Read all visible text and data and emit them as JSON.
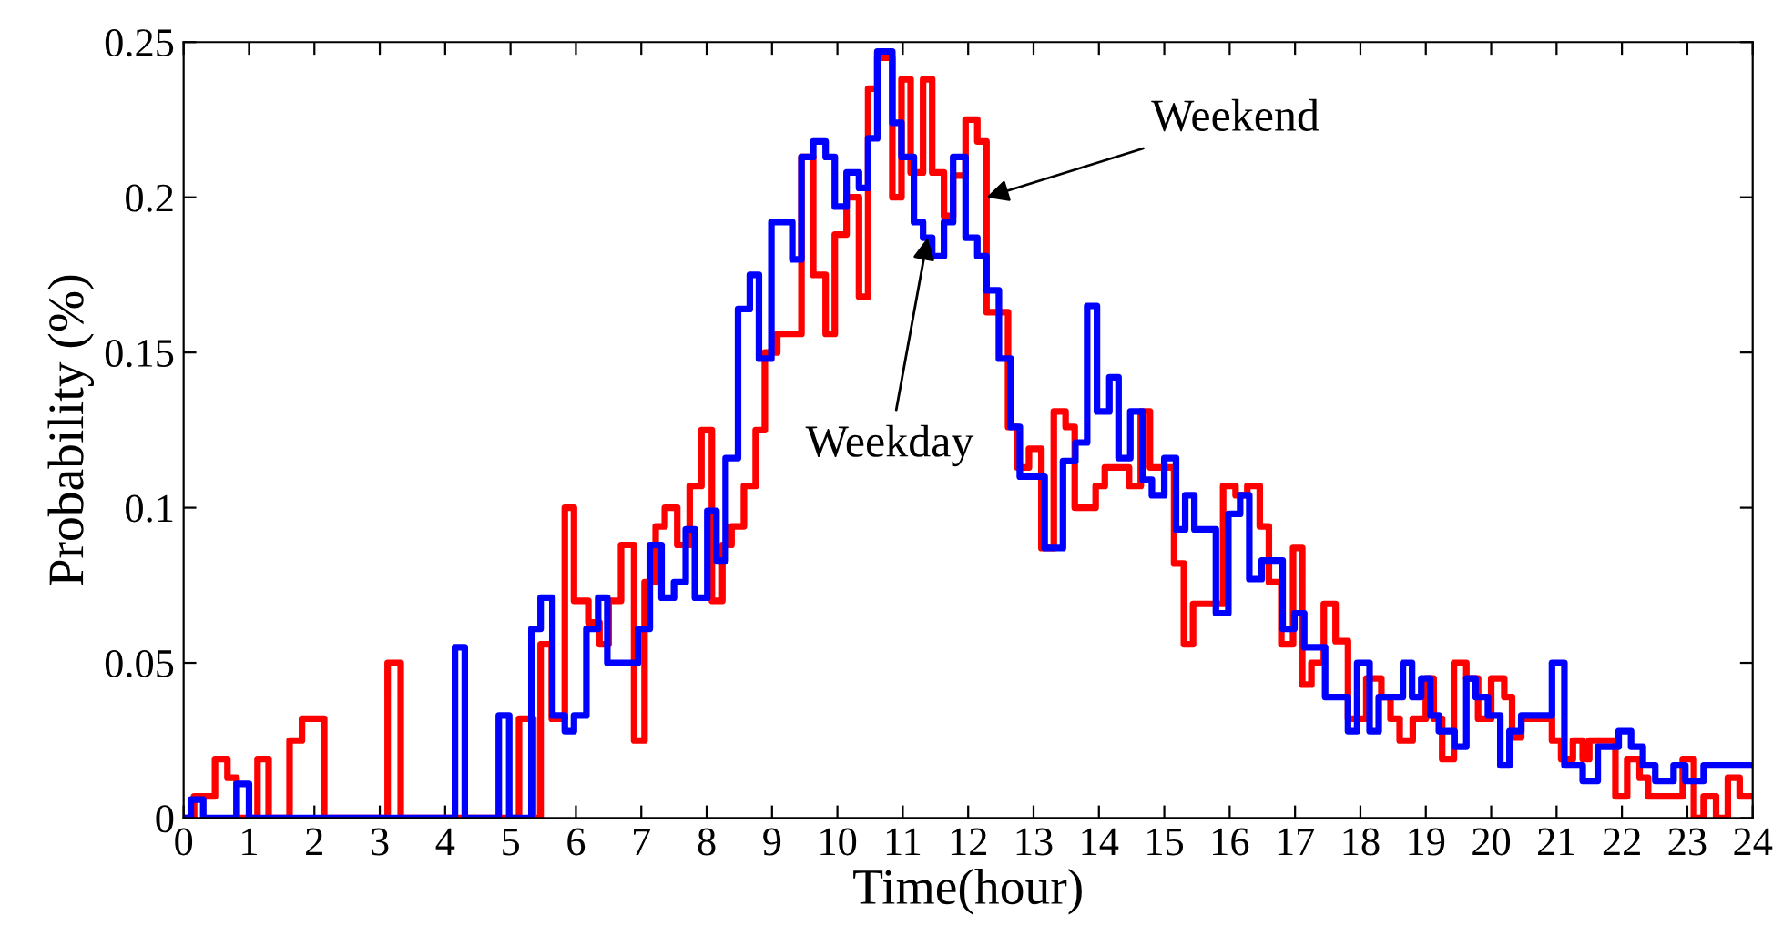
{
  "chart_data": {
    "type": "step",
    "xlabel": "Time(hour)",
    "ylabel": "Probability (%)",
    "xlim": [
      0,
      24
    ],
    "ylim": [
      0,
      0.25
    ],
    "xticks": [
      0,
      1,
      2,
      3,
      4,
      5,
      6,
      7,
      8,
      9,
      10,
      11,
      12,
      13,
      14,
      15,
      16,
      17,
      18,
      19,
      20,
      21,
      22,
      23,
      24
    ],
    "yticks": [
      0,
      0.05,
      0.1,
      0.15,
      0.2,
      0.25
    ],
    "grid": false,
    "series": [
      {
        "color": "#ff0000",
        "x": [
          0,
          0.16,
          0.48,
          0.67,
          0.81,
          1.13,
          1.3,
          1.62,
          1.81,
          2.15,
          3.12,
          3.32,
          5.13,
          5.35,
          5.46,
          5.63,
          5.83,
          5.97,
          6.19,
          6.36,
          6.5,
          6.69,
          6.89,
          7.05,
          7.22,
          7.36,
          7.55,
          7.74,
          7.92,
          8.08,
          8.24,
          8.38,
          8.57,
          8.75,
          8.89,
          9.08,
          9.45,
          9.63,
          9.82,
          9.96,
          10.14,
          10.33,
          10.47,
          10.61,
          10.84,
          10.98,
          11.12,
          11.31,
          11.45,
          11.63,
          11.77,
          11.96,
          12.14,
          12.28,
          12.61,
          12.75,
          12.93,
          13.12,
          13.31,
          13.49,
          13.63,
          13.95,
          14.09,
          14.46,
          14.64,
          14.78,
          15.15,
          15.3,
          15.44,
          15.9,
          16.09,
          16.27,
          16.46,
          16.6,
          16.79,
          16.97,
          17.11,
          17.25,
          17.44,
          17.62,
          17.81,
          18.09,
          18.32,
          18.46,
          18.6,
          18.8,
          19.0,
          19.12,
          19.25,
          19.43,
          19.62,
          19.8,
          20.0,
          20.2,
          20.32,
          20.46,
          20.93,
          21.07,
          21.25,
          21.4,
          21.5,
          21.9,
          22.08,
          22.27,
          22.4,
          22.93,
          23.1,
          23.25,
          23.44,
          23.62,
          23.8,
          24
        ],
        "values": [
          0,
          0.007,
          0.019,
          0.013,
          0,
          0.019,
          0,
          0.025,
          0.032,
          0,
          0.05,
          0,
          0.032,
          0,
          0.056,
          0.032,
          0.1,
          0.07,
          0.063,
          0.056,
          0.07,
          0.088,
          0.025,
          0.076,
          0.094,
          0.1,
          0.088,
          0.107,
          0.125,
          0.07,
          0.088,
          0.094,
          0.107,
          0.125,
          0.15,
          0.156,
          0.213,
          0.175,
          0.156,
          0.188,
          0.2,
          0.168,
          0.235,
          0.245,
          0.2,
          0.238,
          0.208,
          0.238,
          0.208,
          0.194,
          0.207,
          0.225,
          0.218,
          0.163,
          0.126,
          0.113,
          0.119,
          0.087,
          0.131,
          0.126,
          0.1,
          0.107,
          0.113,
          0.107,
          0.131,
          0.113,
          0.082,
          0.056,
          0.069,
          0.107,
          0.104,
          0.107,
          0.094,
          0.076,
          0.056,
          0.087,
          0.043,
          0.05,
          0.069,
          0.057,
          0.032,
          0.045,
          0.039,
          0.032,
          0.025,
          0.032,
          0.045,
          0.032,
          0.019,
          0.05,
          0.045,
          0.032,
          0.045,
          0.039,
          0.026,
          0.032,
          0.025,
          0.019,
          0.025,
          0.019,
          0.025,
          0.007,
          0.019,
          0.013,
          0.007,
          0.019,
          0,
          0.007,
          0,
          0.013,
          0.007,
          0.007
        ]
      },
      {
        "color": "#0000ff",
        "x": [
          0,
          0.11,
          0.3,
          0.81,
          1.0,
          4.15,
          4.3,
          4.82,
          4.98,
          5.32,
          5.46,
          5.64,
          5.83,
          5.97,
          6.16,
          6.34,
          6.48,
          6.95,
          7.13,
          7.31,
          7.5,
          7.68,
          7.82,
          8.01,
          8.15,
          8.29,
          8.48,
          8.66,
          8.8,
          8.99,
          9.31,
          9.45,
          9.63,
          9.82,
          9.96,
          10.14,
          10.33,
          10.47,
          10.61,
          10.84,
          10.98,
          11.17,
          11.31,
          11.45,
          11.63,
          11.77,
          11.96,
          12.14,
          12.28,
          12.47,
          12.65,
          12.79,
          13.17,
          13.45,
          13.64,
          13.82,
          13.97,
          14.16,
          14.3,
          14.48,
          14.67,
          14.81,
          15.0,
          15.18,
          15.32,
          15.46,
          15.79,
          15.98,
          16.16,
          16.3,
          16.49,
          16.81,
          16.99,
          17.14,
          17.46,
          17.81,
          17.95,
          18.14,
          18.28,
          18.65,
          18.79,
          18.93,
          19.07,
          19.2,
          19.44,
          19.62,
          19.76,
          19.95,
          20.14,
          20.28,
          20.46,
          20.93,
          21.12,
          21.4,
          21.63,
          21.95,
          22.14,
          22.32,
          22.51,
          22.79,
          22.97,
          23.25,
          24
        ],
        "values": [
          0,
          0.006,
          0,
          0.011,
          0,
          0.055,
          0,
          0.033,
          0,
          0.061,
          0.071,
          0.033,
          0.028,
          0.033,
          0.061,
          0.071,
          0.05,
          0.061,
          0.088,
          0.071,
          0.076,
          0.093,
          0.071,
          0.099,
          0.083,
          0.116,
          0.164,
          0.175,
          0.148,
          0.192,
          0.18,
          0.213,
          0.218,
          0.213,
          0.197,
          0.208,
          0.203,
          0.219,
          0.247,
          0.224,
          0.213,
          0.192,
          0.187,
          0.181,
          0.192,
          0.213,
          0.187,
          0.181,
          0.17,
          0.148,
          0.126,
          0.11,
          0.087,
          0.115,
          0.121,
          0.165,
          0.131,
          0.142,
          0.116,
          0.131,
          0.109,
          0.104,
          0.116,
          0.093,
          0.104,
          0.093,
          0.066,
          0.098,
          0.104,
          0.077,
          0.083,
          0.061,
          0.066,
          0.055,
          0.039,
          0.028,
          0.05,
          0.028,
          0.039,
          0.05,
          0.039,
          0.045,
          0.033,
          0.028,
          0.023,
          0.045,
          0.039,
          0.033,
          0.017,
          0.028,
          0.033,
          0.05,
          0.017,
          0.012,
          0.023,
          0.028,
          0.023,
          0.017,
          0.012,
          0.017,
          0.012,
          0.017,
          0.017
        ]
      }
    ],
    "annotations": [
      {
        "text": "Weekend",
        "x": 12.28,
        "y": 0.2
      },
      {
        "text": "Weekday",
        "x": 11.38,
        "y": 0.187
      }
    ]
  }
}
